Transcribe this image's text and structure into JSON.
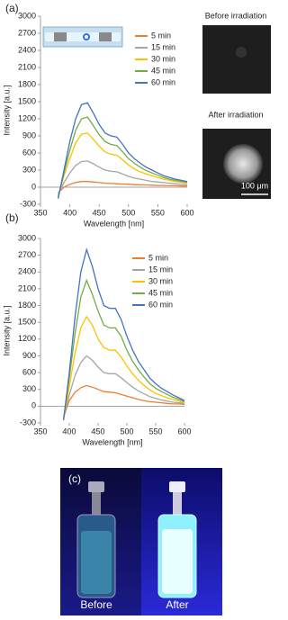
{
  "chart_data": [
    {
      "type": "line",
      "panel_label": "(a)",
      "xlabel": "Wavelength [nm]",
      "ylabel": "Intensity [a.u.]",
      "xlim": [
        350,
        600
      ],
      "xticks": [
        350,
        400,
        450,
        500,
        550,
        600
      ],
      "ylim": [
        -300,
        3000
      ],
      "yticks": [
        -300,
        0,
        300,
        600,
        900,
        1200,
        1500,
        1800,
        2100,
        2400,
        2700,
        3000
      ],
      "grid": false,
      "legend": "upper right",
      "x": [
        380,
        390,
        400,
        410,
        420,
        430,
        440,
        450,
        460,
        470,
        480,
        490,
        500,
        510,
        520,
        530,
        540,
        550,
        560,
        570,
        580,
        590,
        600
      ],
      "series": [
        {
          "name": "5 min",
          "color": "#ed7d31",
          "values": [
            -100,
            0,
            50,
            80,
            100,
            100,
            90,
            80,
            70,
            65,
            60,
            55,
            50,
            45,
            40,
            40,
            35,
            30,
            30,
            25,
            25,
            20,
            20
          ]
        },
        {
          "name": "15 min",
          "color": "#a5a5a5",
          "values": [
            -120,
            80,
            250,
            380,
            450,
            460,
            410,
            350,
            300,
            280,
            270,
            230,
            190,
            160,
            140,
            120,
            100,
            90,
            80,
            70,
            60,
            50,
            45
          ]
        },
        {
          "name": "30 min",
          "color": "#ffc000",
          "values": [
            -150,
            200,
            500,
            780,
            930,
            950,
            840,
            720,
            620,
            580,
            560,
            480,
            390,
            320,
            270,
            230,
            200,
            170,
            140,
            120,
            100,
            85,
            70
          ]
        },
        {
          "name": "45 min",
          "color": "#70ad47",
          "values": [
            -180,
            250,
            650,
            1000,
            1200,
            1230,
            1080,
            920,
            800,
            750,
            730,
            620,
            500,
            420,
            350,
            290,
            250,
            210,
            170,
            140,
            120,
            100,
            90
          ]
        },
        {
          "name": "60 min",
          "color": "#4472c4",
          "values": [
            -200,
            300,
            800,
            1200,
            1450,
            1480,
            1300,
            1100,
            950,
            900,
            880,
            750,
            600,
            500,
            420,
            350,
            300,
            250,
            200,
            170,
            140,
            120,
            100
          ]
        }
      ]
    },
    {
      "type": "line",
      "panel_label": "(b)",
      "xlabel": "Wavelength [nm]",
      "ylabel": "Intensity [a.u.]",
      "xlim": [
        350,
        600
      ],
      "xticks": [
        350,
        400,
        450,
        500,
        550,
        600
      ],
      "ylim": [
        -300,
        3000
      ],
      "yticks": [
        -300,
        0,
        300,
        600,
        900,
        1200,
        1500,
        1800,
        2100,
        2400,
        2700,
        3000
      ],
      "grid": false,
      "legend": "upper right",
      "x": [
        390,
        400,
        410,
        420,
        430,
        440,
        450,
        460,
        470,
        480,
        490,
        500,
        510,
        520,
        530,
        540,
        550,
        560,
        570,
        580,
        590,
        600
      ],
      "series": [
        {
          "name": "5 min",
          "color": "#ed7d31",
          "values": [
            -200,
            100,
            250,
            330,
            370,
            340,
            300,
            260,
            250,
            240,
            210,
            180,
            150,
            120,
            100,
            80,
            70,
            60,
            50,
            40,
            40,
            30
          ]
        },
        {
          "name": "15 min",
          "color": "#a5a5a5",
          "values": [
            -220,
            200,
            550,
            780,
            900,
            820,
            700,
            600,
            580,
            580,
            510,
            420,
            340,
            270,
            220,
            170,
            140,
            110,
            90,
            70,
            60,
            50
          ]
        },
        {
          "name": "30 min",
          "color": "#ffc000",
          "values": [
            -230,
            350,
            950,
            1400,
            1600,
            1450,
            1200,
            1050,
            1000,
            1000,
            880,
            720,
            580,
            460,
            370,
            290,
            230,
            190,
            150,
            120,
            90,
            60
          ]
        },
        {
          "name": "45 min",
          "color": "#70ad47",
          "values": [
            -240,
            500,
            1300,
            1950,
            2250,
            2000,
            1700,
            1450,
            1400,
            1400,
            1250,
            1000,
            800,
            650,
            520,
            400,
            320,
            260,
            210,
            160,
            120,
            80
          ]
        },
        {
          "name": "60 min",
          "color": "#4472c4",
          "values": [
            -250,
            600,
            1600,
            2400,
            2800,
            2500,
            2100,
            1800,
            1750,
            1750,
            1550,
            1250,
            1000,
            800,
            650,
            500,
            400,
            320,
            260,
            200,
            150,
            100
          ]
        }
      ]
    }
  ],
  "images": {
    "before_title": "Before irradiation",
    "after_title": "After irradiation",
    "scale_bar": "100 μm"
  },
  "photo": {
    "label": "(c)",
    "before": "Before",
    "after": "After"
  }
}
